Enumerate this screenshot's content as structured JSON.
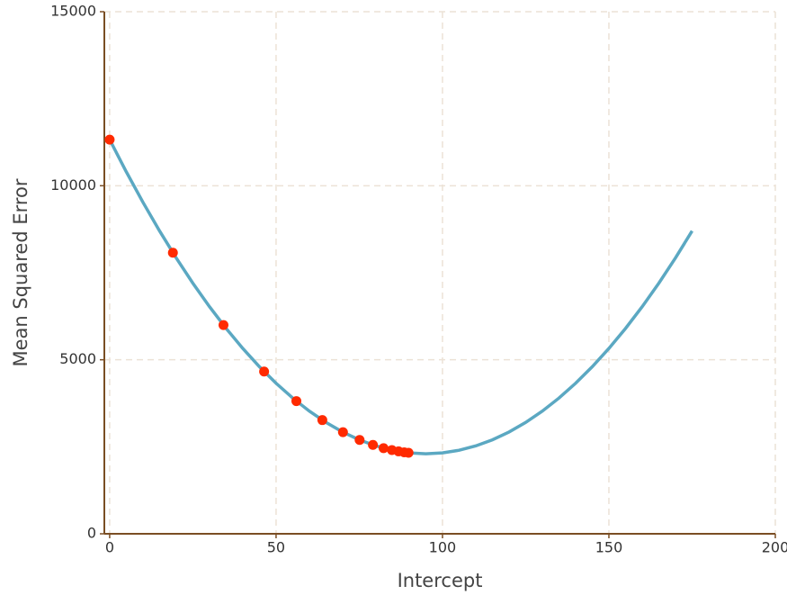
{
  "chart_data": {
    "type": "line",
    "x_label": "Intercept",
    "y_label": "Mean Squared Error",
    "xlim": [
      -1.6,
      200
    ],
    "ylim": [
      0,
      15000
    ],
    "xticks": [
      0,
      50,
      100,
      150,
      200
    ],
    "yticks": [
      0,
      5000,
      10000,
      15000
    ],
    "grid": true,
    "series": [
      {
        "type": "line",
        "color": "#5ba8c2",
        "x": [
          0,
          5,
          10,
          15,
          20,
          25,
          30,
          35,
          40,
          45,
          50,
          55,
          60,
          65,
          70,
          75,
          80,
          85,
          90,
          95,
          100,
          105,
          110,
          115,
          120,
          125,
          130,
          135,
          140,
          145,
          150,
          155,
          160,
          165,
          170,
          175
        ],
        "values": [
          11325,
          10400,
          9525,
          8700,
          7925,
          7200,
          6525,
          5900,
          5325,
          4800,
          4325,
          3900,
          3525,
          3200,
          2925,
          2700,
          2525,
          2400,
          2325,
          2300,
          2325,
          2400,
          2525,
          2700,
          2925,
          3200,
          3525,
          3900,
          4325,
          4800,
          5325,
          5900,
          6525,
          7200,
          7925,
          8700
        ]
      },
      {
        "type": "scatter",
        "color": "#ff2a00",
        "x": [
          0,
          19,
          34.2,
          46.4,
          56.1,
          63.9,
          70.1,
          75.1,
          79.1,
          82.3,
          84.8,
          86.8,
          88.5,
          89.8
        ],
        "values": [
          11325,
          8076,
          5997,
          4662,
          3813,
          3267,
          2920,
          2696,
          2553,
          2460,
          2404,
          2368,
          2342,
          2327
        ]
      }
    ]
  }
}
